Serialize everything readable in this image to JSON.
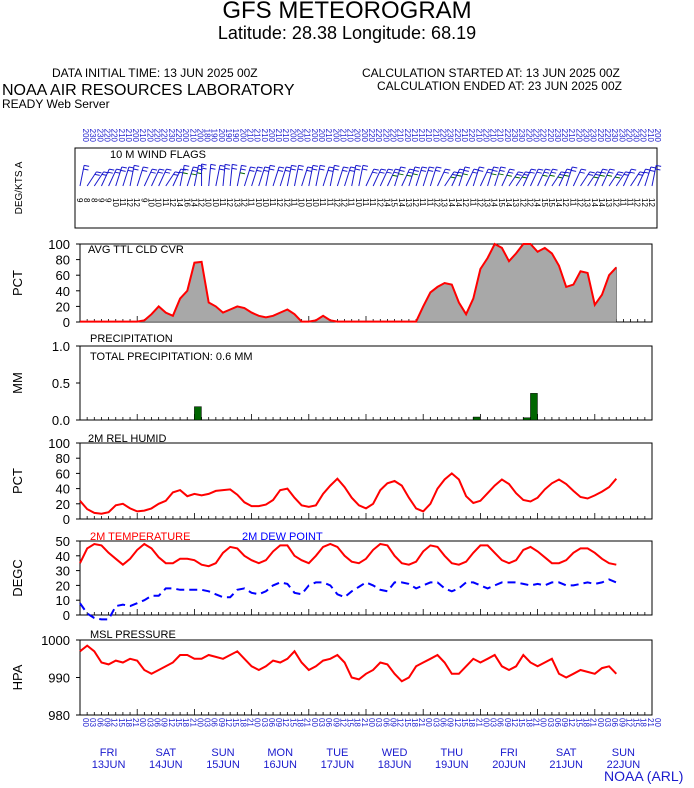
{
  "header": {
    "title": "GFS METEOROGRAM",
    "subtitle": "Latitude: 28.38 Longitude:  68.19",
    "data_initial_time": "DATA INITIAL TIME: 13 JUN 2025 00Z",
    "calc_started": "CALCULATION STARTED AT: 13 JUN 2025 00Z",
    "calc_ended": "CALCULATION ENDED AT: 23 JUN 2025 00Z",
    "lab": "NOAA AIR RESOURCES LABORATORY",
    "server": "READY Web Server",
    "credit": "NOAA (ARL)"
  },
  "colors": {
    "temperature": "#ff0000",
    "dewpoint": "#0000ff",
    "humidity": "#ff0000",
    "pressure": "#ff0000",
    "precip": "#006600",
    "cloud_fill": "#a8a8a8",
    "wind": "#1a1acd",
    "axis_text_blue": "#1a1acd"
  },
  "x_axis": {
    "hour_labels": [
      "00",
      "03",
      "06",
      "09",
      "12",
      "15",
      "18",
      "21",
      "00",
      "03",
      "06",
      "09",
      "12",
      "15",
      "18",
      "21",
      "00",
      "03",
      "06",
      "09",
      "12",
      "15",
      "18",
      "21",
      "00",
      "03",
      "06",
      "09",
      "12",
      "15",
      "18",
      "21",
      "00",
      "03",
      "06",
      "09",
      "12",
      "15",
      "18",
      "21",
      "00",
      "03",
      "06",
      "09",
      "12",
      "15",
      "18",
      "21",
      "00",
      "03",
      "06",
      "09",
      "12",
      "15",
      "18",
      "21",
      "00",
      "03",
      "06",
      "09",
      "12",
      "15",
      "18",
      "21",
      "00",
      "03",
      "06",
      "09",
      "12",
      "15",
      "18",
      "21",
      "00",
      "03",
      "06",
      "09",
      "12",
      "15",
      "18",
      "21",
      "00"
    ],
    "days": [
      {
        "dow": "FRI",
        "date": "13JUN"
      },
      {
        "dow": "SAT",
        "date": "14JUN"
      },
      {
        "dow": "SUN",
        "date": "15JUN"
      },
      {
        "dow": "MON",
        "date": "16JUN"
      },
      {
        "dow": "TUE",
        "date": "17JUN"
      },
      {
        "dow": "WED",
        "date": "18JUN"
      },
      {
        "dow": "THU",
        "date": "19JUN"
      },
      {
        "dow": "FRI",
        "date": "20JUN"
      },
      {
        "dow": "SAT",
        "date": "21JUN"
      },
      {
        "dow": "SUN",
        "date": "22JUN"
      }
    ]
  },
  "chart_data": [
    {
      "type": "wind-barbs",
      "panel_title": "10 M  WIND FLAGS",
      "ylabel": "DEG/KTS  A",
      "direction_deg": [
        200,
        230,
        230,
        220,
        220,
        210,
        210,
        200,
        210,
        220,
        220,
        220,
        230,
        220,
        200,
        210,
        200,
        180,
        190,
        200,
        190,
        190,
        200,
        210,
        210,
        210,
        200,
        210,
        210,
        200,
        200,
        210,
        200,
        200,
        210,
        200,
        210,
        210,
        200,
        200,
        220,
        220,
        220,
        220,
        210,
        220,
        210,
        210,
        210,
        210,
        220,
        230,
        220,
        210,
        220,
        210,
        220,
        210,
        210,
        220,
        230,
        230,
        220,
        220,
        220,
        220,
        230,
        220,
        210,
        220,
        230,
        230,
        220,
        220,
        230,
        230,
        220,
        230,
        220,
        210,
        200
      ],
      "speed_kt": [
        9,
        8,
        8,
        9,
        9,
        10,
        11,
        12,
        12,
        9,
        10,
        10,
        11,
        12,
        14,
        16,
        14,
        12,
        10,
        10,
        11,
        12,
        13,
        12,
        11,
        10,
        10,
        11,
        12,
        12,
        11,
        10,
        10,
        10,
        11,
        11,
        12,
        12,
        11,
        10,
        11,
        11,
        12,
        14,
        15,
        14,
        13,
        12,
        11,
        11,
        12,
        13,
        14,
        14,
        12,
        11,
        12,
        13,
        14,
        15,
        14,
        13,
        12,
        12,
        14,
        15,
        15,
        14,
        12,
        11,
        12,
        13,
        14,
        14,
        13,
        12,
        11,
        11,
        12,
        12,
        12
      ]
    },
    {
      "type": "area",
      "panel_title": "AVG TTL CLD CVR",
      "ylabel": "PCT",
      "ylim": [
        0,
        100
      ],
      "yticks": [
        0,
        20,
        40,
        60,
        80,
        100
      ],
      "values": [
        0,
        0,
        0,
        0,
        0,
        0,
        0,
        0,
        0,
        2,
        10,
        20,
        12,
        8,
        30,
        40,
        76,
        77,
        25,
        20,
        12,
        16,
        20,
        18,
        12,
        8,
        6,
        8,
        12,
        16,
        10,
        0,
        0,
        2,
        8,
        2,
        1,
        1,
        1,
        1,
        1,
        1,
        1,
        1,
        1,
        1,
        1,
        1,
        20,
        38,
        45,
        50,
        48,
        25,
        10,
        30,
        68,
        82,
        100,
        95,
        78,
        88,
        100,
        100,
        90,
        95,
        88,
        72,
        45,
        48,
        65,
        63,
        22,
        35,
        60,
        70
      ]
    },
    {
      "type": "bar",
      "panel_title": "PRECIPITATION",
      "annotation": "TOTAL PRECIPITATION:   0.6 MM",
      "ylabel": "MM",
      "ylim": [
        0,
        1.0
      ],
      "yticks": [
        0.0,
        0.5,
        1.0
      ],
      "bars": [
        {
          "index": 16,
          "value": 0.18
        },
        {
          "index": 55,
          "value": 0.04
        },
        {
          "index": 62,
          "value": 0.03
        },
        {
          "index": 63,
          "value": 0.36
        }
      ]
    },
    {
      "type": "line",
      "panel_title": "2M REL HUMID",
      "ylabel": "PCT",
      "ylim": [
        0,
        100
      ],
      "yticks": [
        0,
        20,
        40,
        60,
        80,
        100
      ],
      "values": [
        24,
        13,
        8,
        7,
        9,
        18,
        20,
        14,
        10,
        11,
        14,
        20,
        24,
        35,
        38,
        30,
        33,
        31,
        33,
        37,
        38,
        39,
        32,
        22,
        17,
        17,
        19,
        25,
        38,
        40,
        28,
        18,
        16,
        18,
        33,
        44,
        53,
        42,
        28,
        18,
        14,
        20,
        38,
        47,
        50,
        44,
        28,
        14,
        10,
        20,
        40,
        52,
        60,
        52,
        30,
        21,
        24,
        34,
        44,
        52,
        46,
        34,
        25,
        23,
        28,
        39,
        47,
        52,
        46,
        37,
        29,
        27,
        31,
        36,
        42,
        53
      ]
    },
    {
      "type": "line",
      "panel_titles": [
        "2M TEMPERATURE",
        "2M   DEW POINT"
      ],
      "ylabel": "DEGC",
      "ylim": [
        0,
        50
      ],
      "yticks": [
        0,
        10,
        20,
        30,
        40,
        50
      ],
      "series": [
        {
          "name": "2M TEMPERATURE",
          "values": [
            35,
            45,
            48,
            47,
            42,
            38,
            34,
            38,
            44,
            48,
            45,
            39,
            35,
            35,
            38,
            38,
            37,
            34,
            33,
            35,
            42,
            46,
            45,
            40,
            37,
            35,
            37,
            43,
            47,
            47,
            40,
            37,
            35,
            40,
            46,
            48,
            46,
            40,
            36,
            35,
            38,
            44,
            48,
            47,
            40,
            35,
            34,
            36,
            43,
            47,
            46,
            40,
            35,
            34,
            36,
            42,
            47,
            47,
            42,
            37,
            35,
            37,
            44,
            46,
            43,
            39,
            35,
            35,
            37,
            42,
            45,
            45,
            42,
            38,
            35,
            34
          ]
        },
        {
          "name": "2M   DEW POINT",
          "values": [
            8,
            1,
            -2,
            -3,
            -3,
            6,
            7,
            6,
            8,
            10,
            13,
            13,
            18,
            18,
            17,
            17,
            17,
            17,
            16,
            14,
            12,
            12,
            17,
            18,
            15,
            14,
            16,
            20,
            22,
            21,
            15,
            14,
            20,
            22,
            22,
            20,
            14,
            12,
            16,
            19,
            22,
            20,
            17,
            16,
            22,
            22,
            21,
            18,
            20,
            22,
            22,
            18,
            16,
            18,
            22,
            22,
            20,
            18,
            20,
            22,
            22,
            22,
            21,
            20,
            21,
            20,
            22,
            22,
            20,
            20,
            21,
            22,
            21,
            22,
            24,
            22
          ]
        }
      ]
    },
    {
      "type": "line",
      "panel_title": "MSL PRESSURE",
      "ylabel": "HPA",
      "ylim": [
        980,
        1000
      ],
      "yticks": [
        980,
        990,
        1000
      ],
      "values": [
        997,
        998.5,
        997,
        994,
        993.5,
        994.5,
        994,
        995,
        994.5,
        992,
        991,
        992,
        993,
        994,
        996,
        996,
        995,
        995,
        996,
        995.5,
        995,
        996,
        997,
        995,
        993,
        992,
        993,
        994.5,
        994,
        995,
        997,
        994,
        992,
        993,
        994.5,
        995,
        996,
        994,
        990,
        989.5,
        991,
        992,
        994,
        993.5,
        991,
        989,
        990,
        993,
        994,
        995,
        996,
        994,
        991,
        991,
        993,
        995,
        994,
        995,
        996,
        993,
        992,
        993,
        996,
        994,
        993,
        994,
        995,
        991,
        990,
        991,
        992,
        991.5,
        991,
        992.5,
        993,
        991
      ]
    }
  ]
}
